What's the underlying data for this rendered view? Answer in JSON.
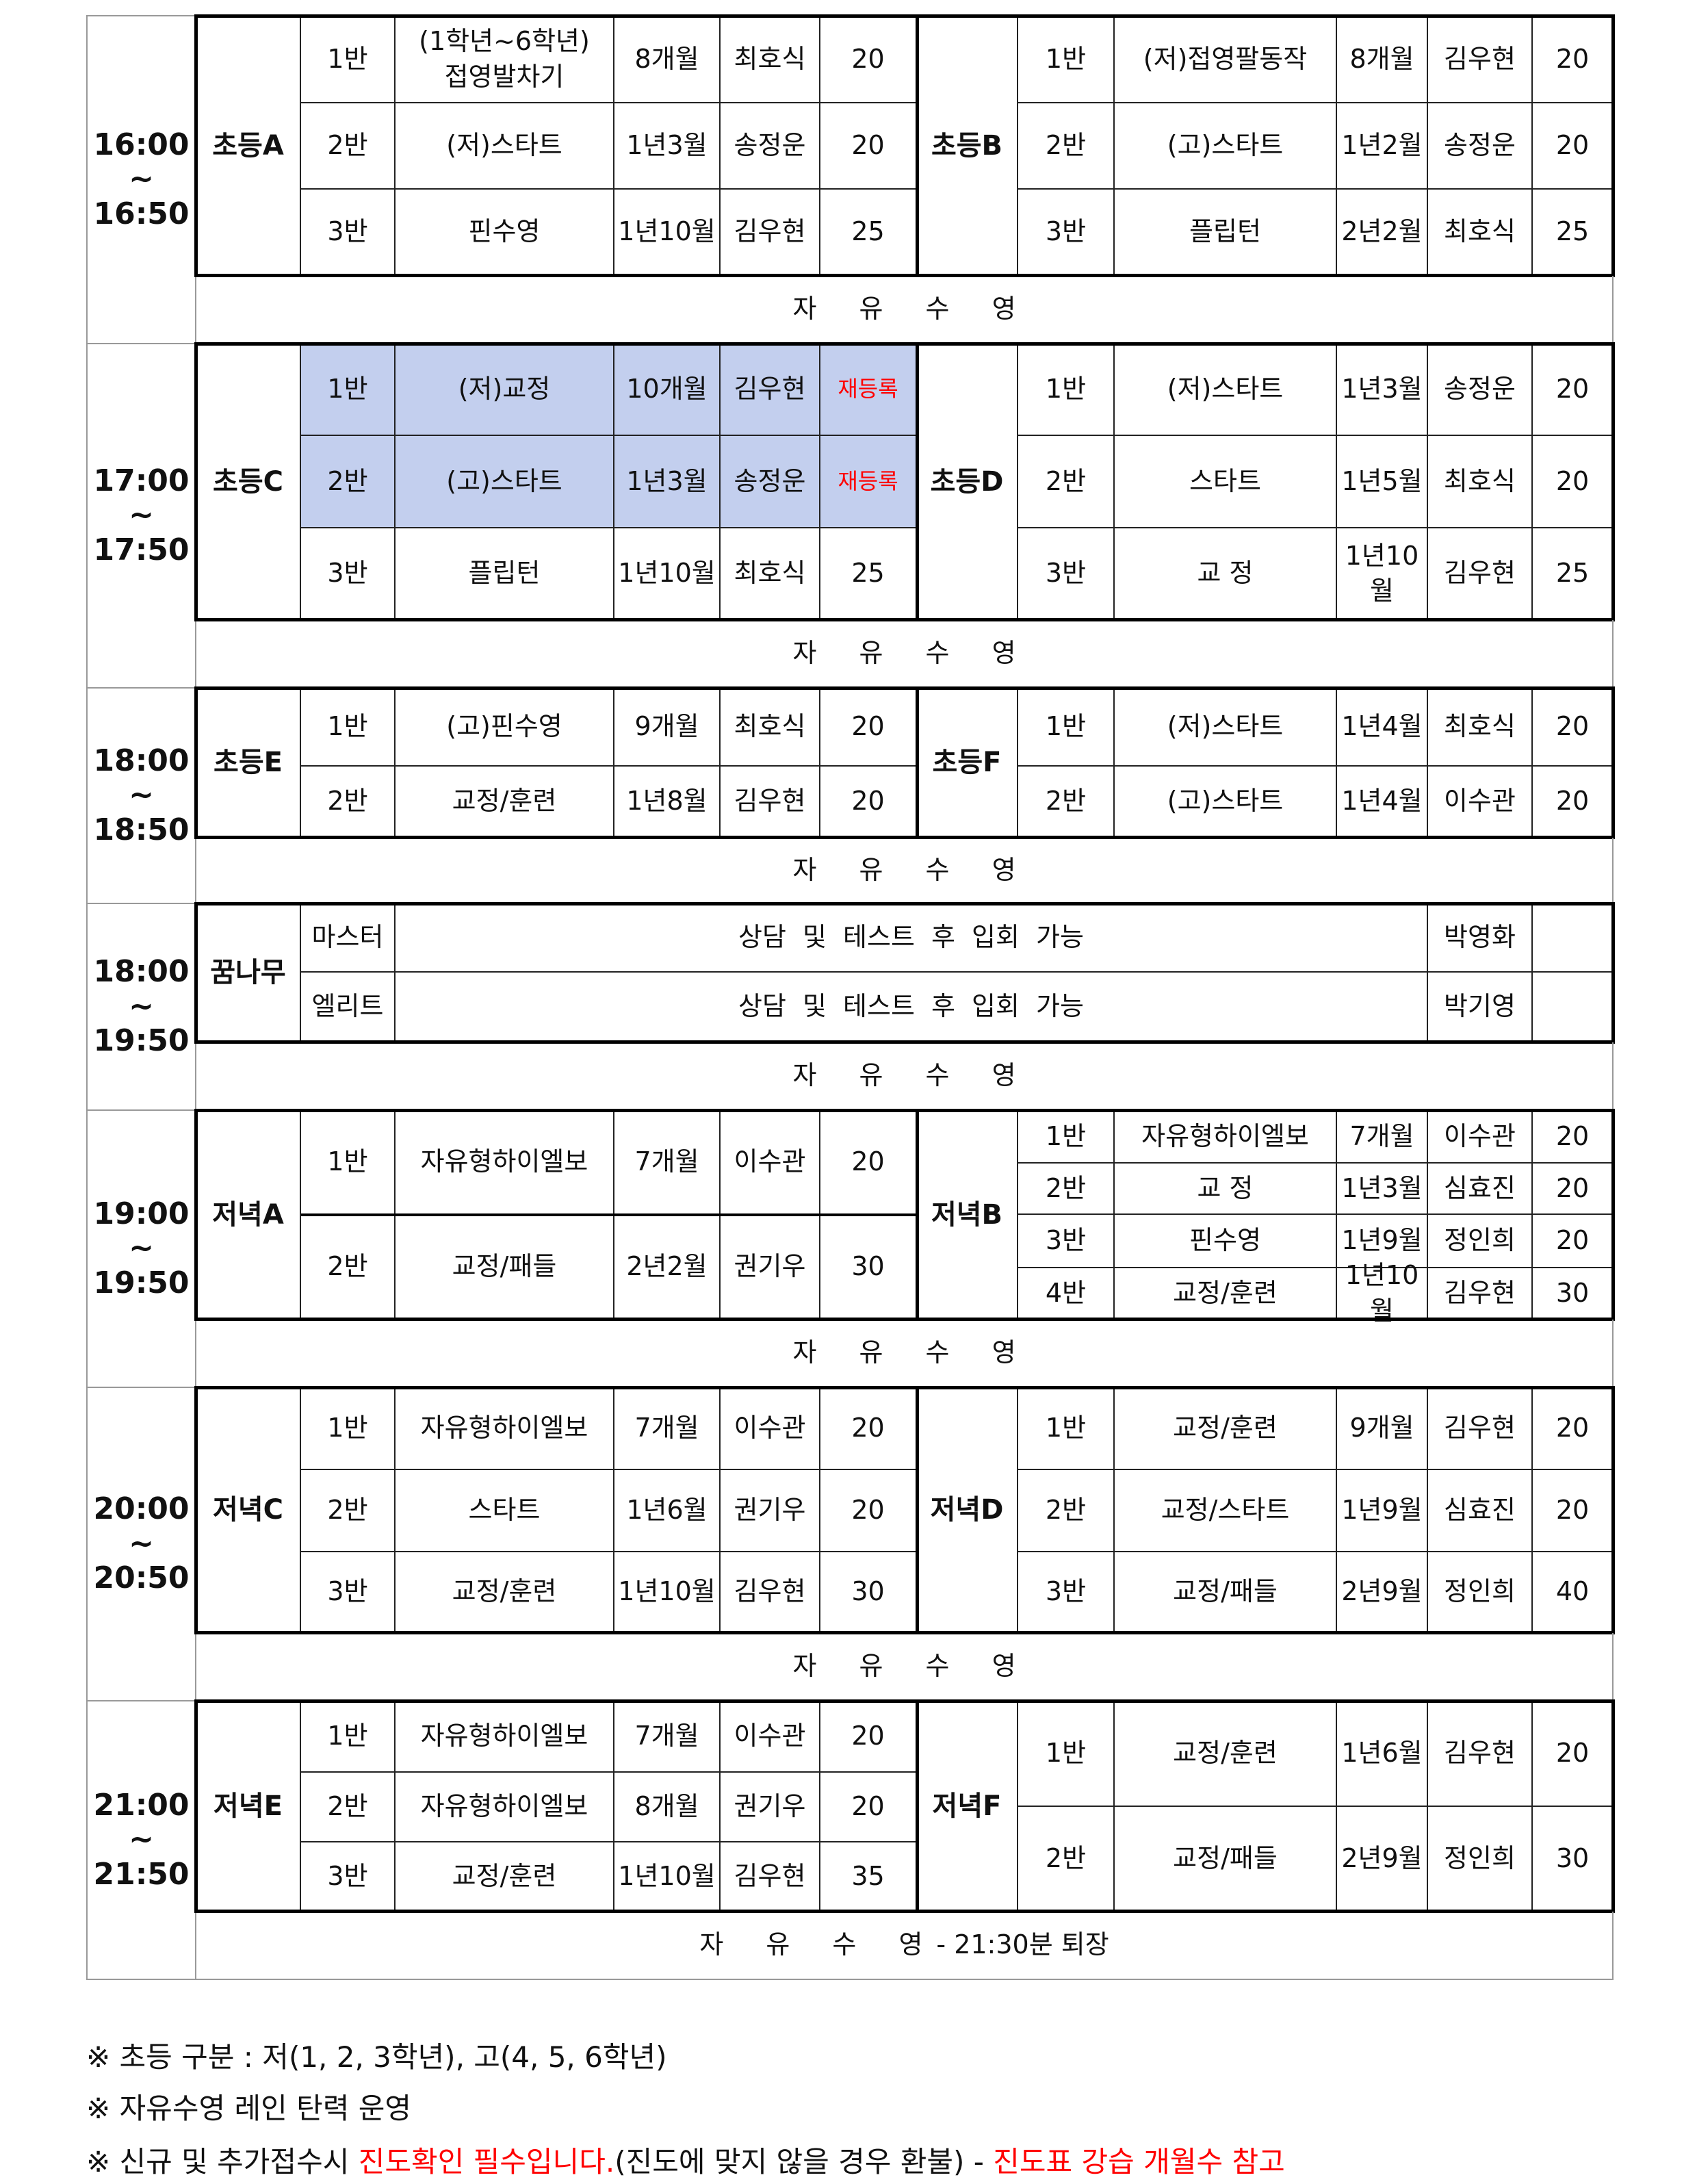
{
  "free_swim": "자 유 수 영",
  "blocks": [
    {
      "time": "16:00\n~\n16:50",
      "left": {
        "name": "초등A",
        "classes": [
          {
            "cls": "1반",
            "subject": "(1학년~6학년)\n접영발차기",
            "period": "8개월",
            "teacher": "최호식",
            "capacity": "20"
          },
          {
            "cls": "2반",
            "subject": "(저)스타트",
            "period": "1년3월",
            "teacher": "송정운",
            "capacity": "20"
          },
          {
            "cls": "3반",
            "subject": "핀수영",
            "period": "1년10월",
            "teacher": "김우현",
            "capacity": "25"
          }
        ]
      },
      "right": {
        "name": "초등B",
        "classes": [
          {
            "cls": "1반",
            "subject": "(저)접영팔동작",
            "period": "8개월",
            "teacher": "김우현",
            "capacity": "20"
          },
          {
            "cls": "2반",
            "subject": "(고)스타트",
            "period": "1년2월",
            "teacher": "송정운",
            "capacity": "20"
          },
          {
            "cls": "3반",
            "subject": "플립턴",
            "period": "2년2월",
            "teacher": "최호식",
            "capacity": "25"
          }
        ]
      }
    },
    {
      "time": "17:00\n~\n17:50",
      "left": {
        "name": "초등C",
        "classes": [
          {
            "cls": "1반",
            "subject": "(저)교정",
            "period": "10개월",
            "teacher": "김우현",
            "capacity": "재등록",
            "highlight": true
          },
          {
            "cls": "2반",
            "subject": "(고)스타트",
            "period": "1년3월",
            "teacher": "송정운",
            "capacity": "재등록",
            "highlight": true
          },
          {
            "cls": "3반",
            "subject": "플립턴",
            "period": "1년10월",
            "teacher": "최호식",
            "capacity": "25"
          }
        ]
      },
      "right": {
        "name": "초등D",
        "classes": [
          {
            "cls": "1반",
            "subject": "(저)스타트",
            "period": "1년3월",
            "teacher": "송정운",
            "capacity": "20"
          },
          {
            "cls": "2반",
            "subject": "스타트",
            "period": "1년5월",
            "teacher": "최호식",
            "capacity": "20"
          },
          {
            "cls": "3반",
            "subject": "교 정",
            "period": "1년10월",
            "teacher": "김우현",
            "capacity": "25"
          }
        ]
      }
    },
    {
      "time": "18:00\n~\n18:50",
      "left": {
        "name": "초등E",
        "classes": [
          {
            "cls": "1반",
            "subject": "(고)핀수영",
            "period": "9개월",
            "teacher": "최호식",
            "capacity": "20"
          },
          {
            "cls": "2반",
            "subject": "교정/훈련",
            "period": "1년8월",
            "teacher": "김우현",
            "capacity": "20"
          }
        ]
      },
      "right": {
        "name": "초등F",
        "classes": [
          {
            "cls": "1반",
            "subject": "(저)스타트",
            "period": "1년4월",
            "teacher": "최호식",
            "capacity": "20"
          },
          {
            "cls": "2반",
            "subject": "(고)스타트",
            "period": "1년4월",
            "teacher": "이수관",
            "capacity": "20"
          }
        ]
      }
    },
    {
      "time": "18:00\n~\n19:50",
      "special": {
        "name": "꿈나무",
        "rows": [
          {
            "level": "마스터",
            "info": "상담 및 테스트 후 입회 가능",
            "teacher": "박영화"
          },
          {
            "level": "엘리트",
            "info": "상담 및 테스트 후 입회 가능",
            "teacher": "박기영"
          }
        ]
      }
    },
    {
      "time": "19:00\n~\n19:50",
      "left": {
        "name": "저녁A",
        "classes": [
          {
            "cls": "1반",
            "subject": "자유형하이엘보",
            "period": "7개월",
            "teacher": "이수관",
            "capacity": "20"
          },
          {
            "cls": "2반",
            "subject": "교정/패들",
            "period": "2년2월",
            "teacher": "권기우",
            "capacity": "30"
          }
        ]
      },
      "right": {
        "name": "저녁B",
        "classes": [
          {
            "cls": "1반",
            "subject": "자유형하이엘보",
            "period": "7개월",
            "teacher": "이수관",
            "capacity": "20"
          },
          {
            "cls": "2반",
            "subject": "교 정",
            "period": "1년3월",
            "teacher": "심효진",
            "capacity": "20"
          },
          {
            "cls": "3반",
            "subject": "핀수영",
            "period": "1년9월",
            "teacher": "정인희",
            "capacity": "20"
          },
          {
            "cls": "4반",
            "subject": "교정/훈련",
            "period": "1년10월",
            "teacher": "김우현",
            "capacity": "30"
          }
        ]
      }
    },
    {
      "time": "20:00\n~\n20:50",
      "left": {
        "name": "저녁C",
        "classes": [
          {
            "cls": "1반",
            "subject": "자유형하이엘보",
            "period": "7개월",
            "teacher": "이수관",
            "capacity": "20"
          },
          {
            "cls": "2반",
            "subject": "스타트",
            "period": "1년6월",
            "teacher": "권기우",
            "capacity": "20"
          },
          {
            "cls": "3반",
            "subject": "교정/훈련",
            "period": "1년10월",
            "teacher": "김우현",
            "capacity": "30"
          }
        ]
      },
      "right": {
        "name": "저녁D",
        "classes": [
          {
            "cls": "1반",
            "subject": "교정/훈련",
            "period": "9개월",
            "teacher": "김우현",
            "capacity": "20"
          },
          {
            "cls": "2반",
            "subject": "교정/스타트",
            "period": "1년9월",
            "teacher": "심효진",
            "capacity": "20"
          },
          {
            "cls": "3반",
            "subject": "교정/패들",
            "period": "2년9월",
            "teacher": "정인희",
            "capacity": "40"
          }
        ]
      }
    },
    {
      "time": "21:00\n~\n21:50",
      "free_note": "- 21:30분 퇴장",
      "left": {
        "name": "저녁E",
        "classes": [
          {
            "cls": "1반",
            "subject": "자유형하이엘보",
            "period": "7개월",
            "teacher": "이수관",
            "capacity": "20"
          },
          {
            "cls": "2반",
            "subject": "자유형하이엘보",
            "period": "8개월",
            "teacher": "권기우",
            "capacity": "20"
          },
          {
            "cls": "3반",
            "subject": "교정/훈련",
            "period": "1년10월",
            "teacher": "김우현",
            "capacity": "35"
          }
        ]
      },
      "right": {
        "name": "저녁F",
        "classes": [
          {
            "cls": "1반",
            "subject": "교정/훈련",
            "period": "1년6월",
            "teacher": "김우현",
            "capacity": "20"
          },
          {
            "cls": "2반",
            "subject": "교정/패들",
            "period": "2년9월",
            "teacher": "정인희",
            "capacity": "30"
          }
        ]
      }
    }
  ],
  "notes": [
    [
      {
        "text": "※ 초등 구분 : 저(1, 2, 3학년), 고(4, 5, 6학년)"
      }
    ],
    [
      {
        "text": "※ 자유수영 레인 탄력 운영"
      }
    ],
    [
      {
        "text": "※ 신규 및 추가접수시 "
      },
      {
        "text": "진도확인 필수입니다.",
        "red": true
      },
      {
        "text": "(진도에 맞지 않을 경우 환불) - "
      },
      {
        "text": "진도표 강습 개월수 참고",
        "red": true
      }
    ]
  ],
  "colors": {
    "highlight": "#c3cfee",
    "emphasis": "#ff0000"
  }
}
